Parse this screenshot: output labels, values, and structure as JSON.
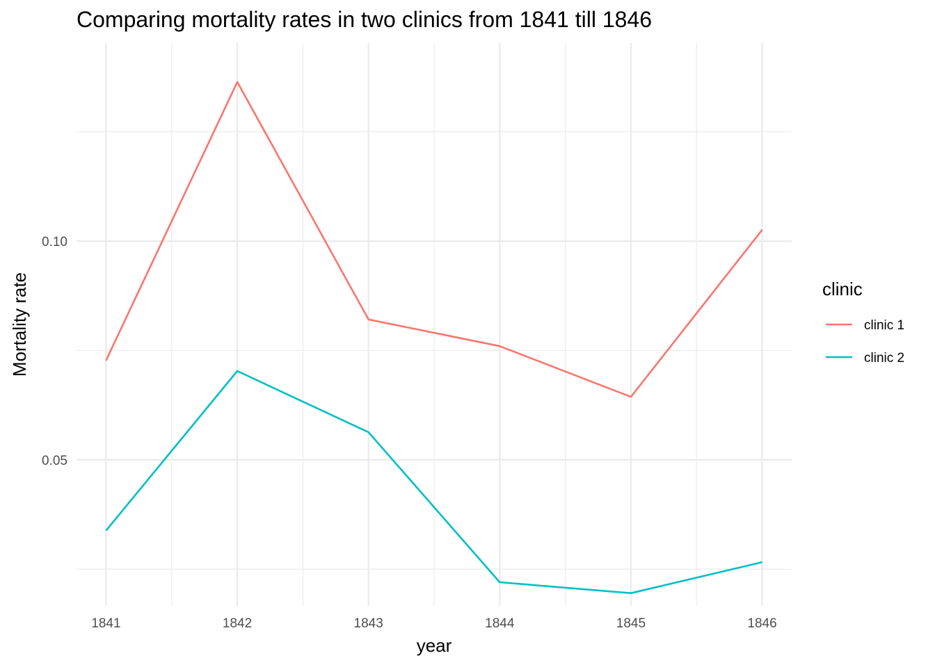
{
  "chart_data": {
    "type": "line",
    "title": "Comparing mortality rates in two clinics from 1841 till 1846",
    "xlabel": "year",
    "ylabel": "Mortality rate",
    "x": [
      1841,
      1842,
      1843,
      1844,
      1845,
      1846
    ],
    "x_tick_labels": [
      "1841",
      "1842",
      "1843",
      "1844",
      "1845",
      "1846"
    ],
    "y_ticks": [
      0.05,
      0.1
    ],
    "y_tick_labels": [
      "0.05",
      "0.10"
    ],
    "ylim": [
      0.0166,
      0.1453
    ],
    "grid": true,
    "legend": {
      "title": "clinic",
      "position": "right"
    },
    "series": [
      {
        "name": "clinic 1",
        "color": "#F8766D",
        "values": [
          0.0727,
          0.1364,
          0.0821,
          0.076,
          0.0644,
          0.1026
        ]
      },
      {
        "name": "clinic 2",
        "color": "#00BFC4",
        "values": [
          0.0338,
          0.0703,
          0.0563,
          0.022,
          0.0195,
          0.0266
        ]
      }
    ]
  }
}
